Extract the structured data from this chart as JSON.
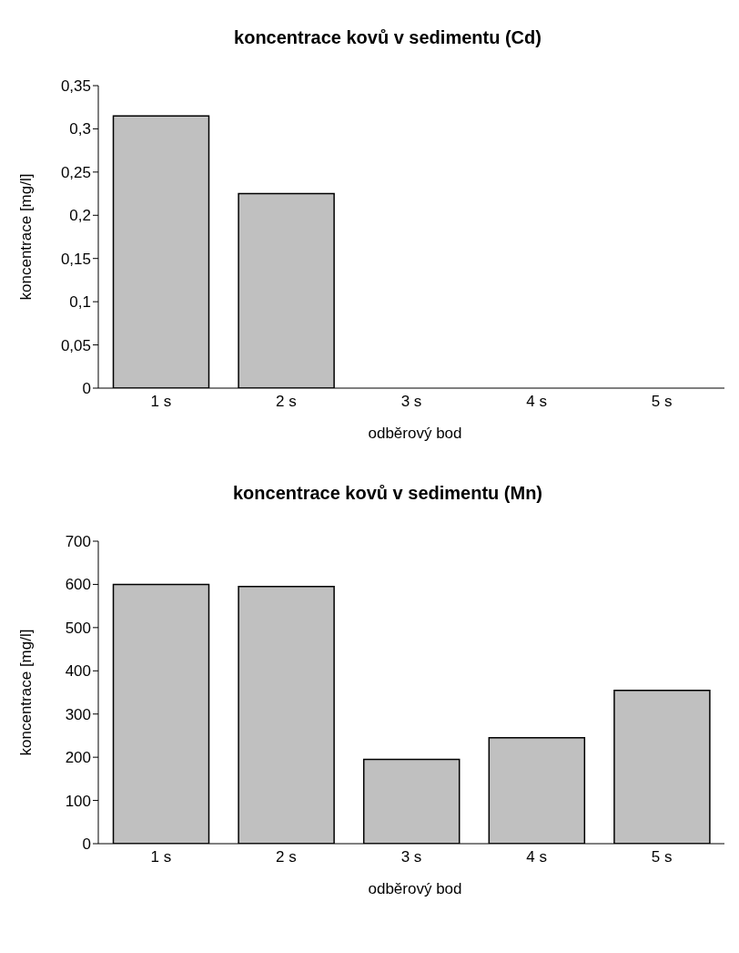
{
  "chart_data": [
    {
      "type": "bar",
      "title": "koncentrace kovů v sedimentu (Cd)",
      "xlabel": "odběrový bod",
      "ylabel": "koncentrace [mg/l]",
      "categories": [
        "1 s",
        "2 s",
        "3 s",
        "4 s",
        "5 s"
      ],
      "values": [
        0.315,
        0.225,
        0,
        0,
        0
      ],
      "color": "#c0c0c0",
      "ylim": [
        0,
        0.35
      ],
      "yticks": [
        0,
        {
          "value": 0.05,
          "label": "0,05"
        },
        {
          "value": 0.1,
          "label": "0,1"
        },
        {
          "value": 0.15,
          "label": "0,15"
        },
        {
          "value": 0.2,
          "label": "0,2"
        },
        {
          "value": 0.25,
          "label": "0,25"
        },
        {
          "value": 0.3,
          "label": "0,3"
        },
        {
          "value": 0.35,
          "label": "0,35"
        }
      ],
      "grid": false,
      "legend": false
    },
    {
      "type": "bar",
      "title": "koncentrace kovů v sedimentu (Mn)",
      "xlabel": "odběrový bod",
      "ylabel": "koncentrace [mg/l]",
      "categories": [
        "1 s",
        "2 s",
        "3 s",
        "4 s",
        "5 s"
      ],
      "values": [
        600,
        595,
        195,
        245,
        355
      ],
      "color": "#c0c0c0",
      "ylim": [
        0,
        700
      ],
      "yticks": [
        0,
        100,
        200,
        300,
        400,
        500,
        600,
        700
      ],
      "grid": false,
      "legend": false
    }
  ]
}
